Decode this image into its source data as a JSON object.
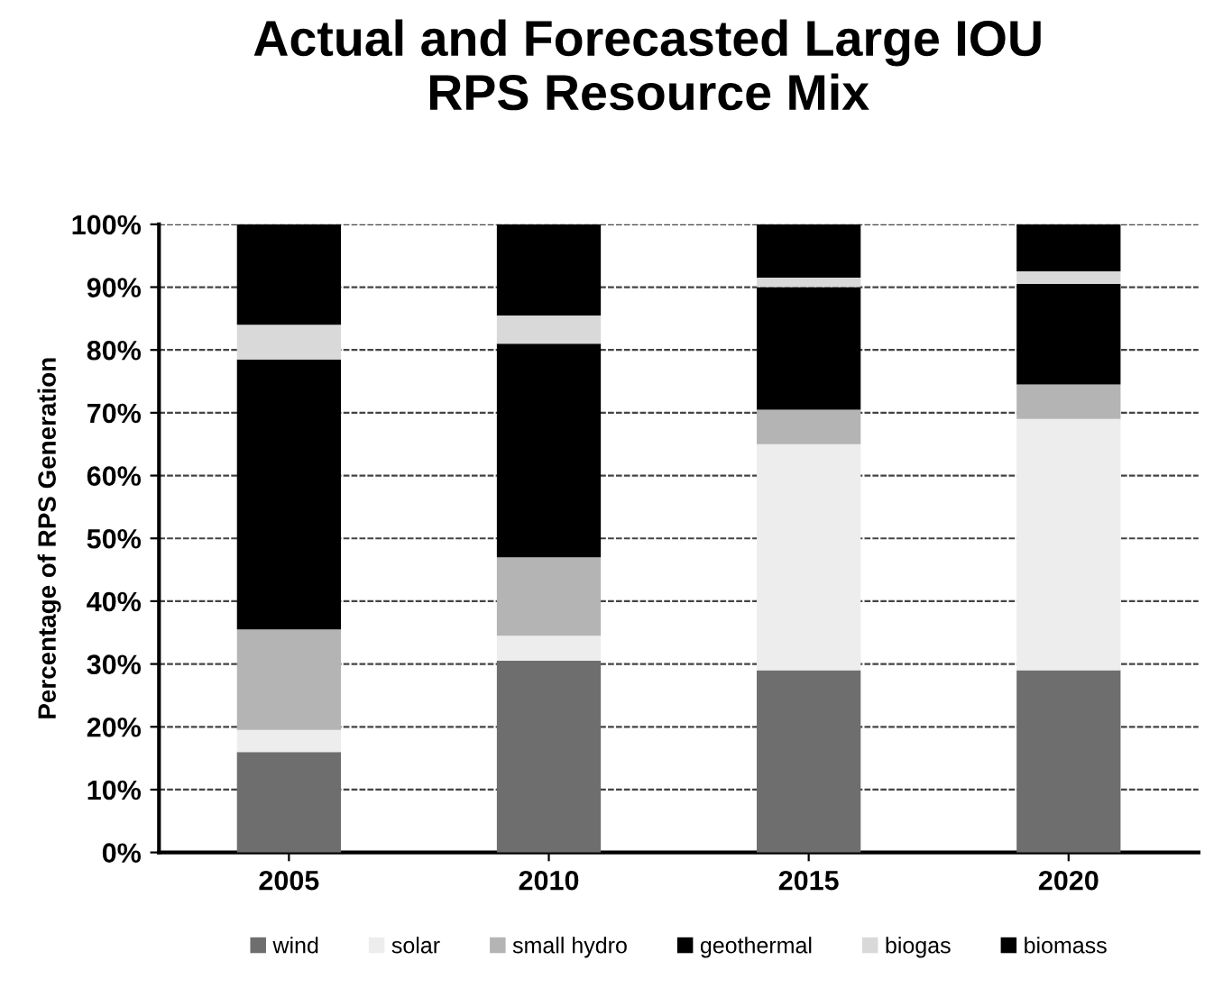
{
  "chart_data": {
    "type": "bar",
    "title": "Actual and Forecasted Large IOU\nRPS Resource Mix",
    "ylabel": "Percentage of RPS Generation",
    "categories": [
      "2005",
      "2010",
      "2015",
      "2020"
    ],
    "stacked": true,
    "series": [
      {
        "name": "wind",
        "color": "#6e6e6e",
        "values": [
          16,
          30.5,
          29,
          29
        ]
      },
      {
        "name": "solar",
        "color": "#ededed",
        "values": [
          3.5,
          4,
          36,
          40
        ]
      },
      {
        "name": "small hydro",
        "color": "#b4b4b4",
        "values": [
          16,
          12.5,
          5.5,
          5.5
        ]
      },
      {
        "name": "geothermal",
        "color": "#000000",
        "values": [
          43,
          34,
          19.5,
          16
        ]
      },
      {
        "name": "biogas",
        "color": "#d9d9d9",
        "values": [
          5.5,
          4.5,
          1.5,
          2
        ]
      },
      {
        "name": "biomass",
        "color": "#000000",
        "values": [
          16,
          14.5,
          8.5,
          7.5
        ]
      }
    ],
    "ylim": [
      0,
      100
    ],
    "yticks": [
      {
        "value": 0,
        "label": "0%"
      },
      {
        "value": 10,
        "label": "10%"
      },
      {
        "value": 20,
        "label": "20%"
      },
      {
        "value": 30,
        "label": "30%"
      },
      {
        "value": 40,
        "label": "40%"
      },
      {
        "value": 50,
        "label": "50%"
      },
      {
        "value": 60,
        "label": "60%"
      },
      {
        "value": 70,
        "label": "70%"
      },
      {
        "value": 80,
        "label": "80%"
      },
      {
        "value": 90,
        "label": "90%"
      },
      {
        "value": 100,
        "label": "100%"
      }
    ],
    "grid": "y",
    "legend": "bottom"
  }
}
